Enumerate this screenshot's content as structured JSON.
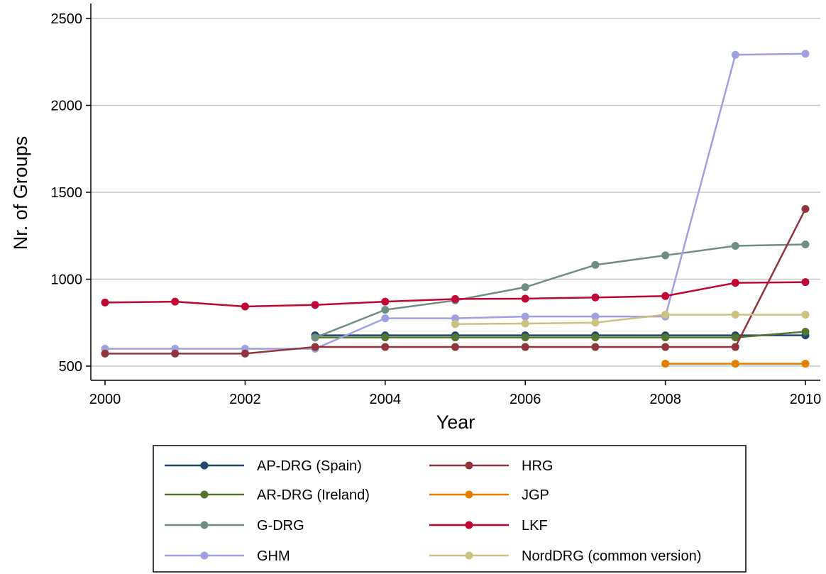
{
  "chart_data": {
    "type": "line",
    "title": "",
    "xlabel": "Year",
    "ylabel": "Nr. of Groups",
    "xlim": [
      2000,
      2010
    ],
    "ylim": [
      450,
      2560
    ],
    "x_ticks": [
      "2000",
      "2002",
      "2004",
      "2006",
      "2008",
      "2010"
    ],
    "y_ticks": [
      "500",
      "1000",
      "1500",
      "2000",
      "2500"
    ],
    "grid": "horizontal",
    "legend_position": "bottom",
    "series": [
      {
        "name": "AP-DRG (Spain)",
        "color": "#1a476f",
        "x": [
          2003,
          2004,
          2005,
          2006,
          2007,
          2008,
          2009,
          2010
        ],
        "y": [
          677,
          677,
          677,
          677,
          677,
          677,
          677,
          677
        ]
      },
      {
        "name": "AR-DRG (Ireland)",
        "color": "#55752f",
        "x": [
          2003,
          2004,
          2005,
          2006,
          2007,
          2008,
          2009,
          2010
        ],
        "y": [
          665,
          665,
          665,
          665,
          665,
          665,
          665,
          698
        ]
      },
      {
        "name": "G-DRG",
        "color": "#6e8e84",
        "x": [
          2003,
          2004,
          2005,
          2006,
          2007,
          2008,
          2009,
          2010
        ],
        "y": [
          664,
          824,
          878,
          954,
          1082,
          1137,
          1192,
          1200
        ]
      },
      {
        "name": "GHM",
        "color": "#a0a0e0",
        "x": [
          2000,
          2001,
          2002,
          2003,
          2004,
          2005,
          2006,
          2007,
          2008,
          2009,
          2010
        ],
        "y": [
          600,
          600,
          600,
          600,
          775,
          775,
          785,
          785,
          785,
          2291,
          2297
        ]
      },
      {
        "name": "HRG",
        "color": "#90353b",
        "x": [
          2000,
          2001,
          2002,
          2003,
          2004,
          2005,
          2006,
          2007,
          2008,
          2009,
          2010
        ],
        "y": [
          572,
          572,
          572,
          610,
          610,
          610,
          610,
          610,
          610,
          610,
          1404
        ]
      },
      {
        "name": "JGP",
        "color": "#e37e00",
        "x": [
          2008,
          2009,
          2010
        ],
        "y": [
          514,
          514,
          514
        ]
      },
      {
        "name": "LKF",
        "color": "#c10534",
        "x": [
          2000,
          2001,
          2002,
          2003,
          2004,
          2005,
          2006,
          2007,
          2008,
          2009,
          2010
        ],
        "y": [
          866,
          871,
          843,
          852,
          871,
          886,
          888,
          895,
          903,
          979,
          983
        ]
      },
      {
        "name": "NordDRG (common version)",
        "color": "#cac27e",
        "x": [
          2005,
          2006,
          2007,
          2008,
          2009,
          2010
        ],
        "y": [
          742,
          745,
          750,
          796,
          796,
          796
        ]
      }
    ]
  }
}
